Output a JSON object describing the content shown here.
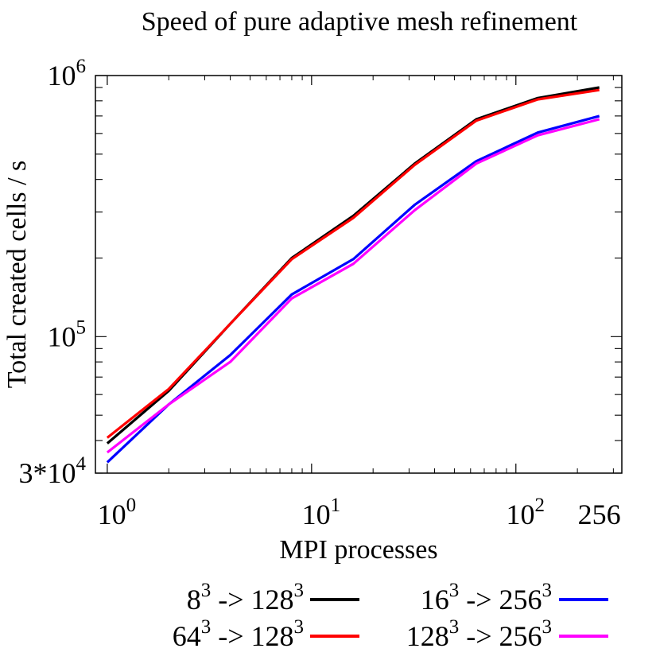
{
  "chart_data": {
    "type": "line",
    "title": "Speed of pure adaptive mesh refinement",
    "xlabel": "MPI processes",
    "ylabel": "Total created cells / s",
    "xscale": "log",
    "yscale": "log",
    "xlim": [
      0.875,
      330
    ],
    "ylim": [
      30000,
      1000000
    ],
    "grid": false,
    "legend_position": "bottom",
    "x": [
      1,
      2,
      4,
      8,
      16,
      32,
      64,
      128,
      256
    ],
    "x_ticks": [
      {
        "value": 1,
        "base": "10",
        "exp": "0"
      },
      {
        "value": 10,
        "base": "10",
        "exp": "1"
      },
      {
        "value": 100,
        "base": "10",
        "exp": "2"
      },
      {
        "value": 256,
        "base": "256",
        "exp": ""
      }
    ],
    "y_ticks": [
      {
        "value": 30000,
        "base": "3*10",
        "exp": "4"
      },
      {
        "value": 100000,
        "base": "10",
        "exp": "5"
      },
      {
        "value": 1000000,
        "base": "10",
        "exp": "6"
      }
    ],
    "series": [
      {
        "name": "8^3 -> 128^3",
        "label_parts": [
          "8",
          "3",
          " -> 128",
          "3"
        ],
        "color": "#000000",
        "values": [
          39000,
          62000,
          112000,
          200000,
          290000,
          460000,
          680000,
          820000,
          900000
        ]
      },
      {
        "name": "64^3 -> 128^3",
        "label_parts": [
          "64",
          "3",
          " -> 128",
          "3"
        ],
        "color": "#ff0000",
        "values": [
          41000,
          63000,
          112000,
          198000,
          285000,
          455000,
          672000,
          810000,
          880000
        ]
      },
      {
        "name": "16^3 -> 256^3",
        "label_parts": [
          "16",
          "3",
          " -> 256",
          "3"
        ],
        "color": "#0000ff",
        "values": [
          33000,
          55000,
          85000,
          145000,
          198000,
          320000,
          470000,
          605000,
          700000
        ]
      },
      {
        "name": "128^3 -> 256^3",
        "label_parts": [
          "128",
          "3",
          " -> 256",
          "3"
        ],
        "color": "#ff00ff",
        "values": [
          36000,
          55000,
          80000,
          140000,
          190000,
          305000,
          460000,
          590000,
          680000
        ]
      }
    ]
  }
}
